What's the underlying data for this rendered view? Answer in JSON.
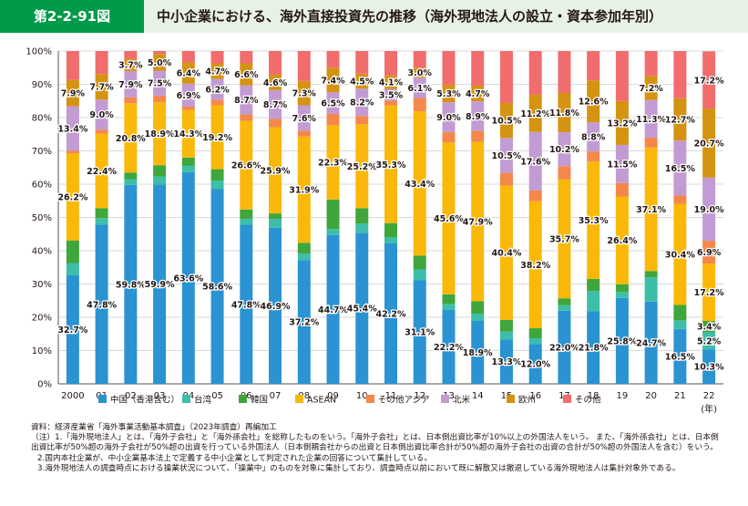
{
  "figure_number": "第2-2-91図",
  "figure_title": "中小企業における、海外直接投資先の推移（海外現地法人の設立・資本参加年別）",
  "chart_data": {
    "type": "bar",
    "stacked": true,
    "percent": true,
    "categories": [
      "2000",
      "01",
      "02",
      "03",
      "04",
      "05",
      "06",
      "07",
      "08",
      "09",
      "10",
      "11",
      "12",
      "13",
      "14",
      "15",
      "16",
      "17",
      "18",
      "19",
      "20",
      "21",
      "22"
    ],
    "x_unit": "(年)",
    "ylim": [
      0,
      100
    ],
    "yticks": [
      "0%",
      "10%",
      "20%",
      "30%",
      "40%",
      "50%",
      "60%",
      "70%",
      "80%",
      "90%",
      "100%"
    ],
    "legend_position": "bottom",
    "series": [
      {
        "name": "中国（香港含む）",
        "color": "#2b93d1",
        "values": [
          32.7,
          47.8,
          59.8,
          59.9,
          63.6,
          58.6,
          47.8,
          46.9,
          37.2,
          44.7,
          45.4,
          42.2,
          31.1,
          22.2,
          18.9,
          13.3,
          12.0,
          22.0,
          21.8,
          25.8,
          24.7,
          16.5,
          10.3
        ],
        "labels": [
          "32.7%",
          "47.8%",
          "59.8%",
          "59.9%",
          "63.6%",
          "58.6%",
          "47.8%",
          "46.9%",
          "37.2%",
          "44.7%",
          "45.4%",
          "42.2%",
          "31.1%",
          "22.2%",
          "18.9%",
          "13.3%",
          "12.0%",
          "22.0%",
          "21.8%",
          "25.8%",
          "24.7%",
          "16.5%",
          "10.3%"
        ]
      },
      {
        "name": "台湾",
        "color": "#3cbea9",
        "values": [
          3.6,
          2.0,
          1.7,
          2.4,
          1.9,
          2.5,
          1.8,
          2.6,
          1.9,
          1.8,
          2.8,
          1.8,
          3.3,
          1.8,
          2.2,
          2.4,
          1.7,
          1.6,
          6.1,
          1.8,
          7.3,
          2.6,
          5.2
        ],
        "labels": [
          "",
          "",
          "",
          "",
          "",
          "",
          "",
          "",
          "",
          "",
          "",
          "",
          "",
          "",
          "",
          "",
          "",
          "",
          "",
          "",
          "",
          "",
          "5.2%"
        ]
      },
      {
        "name": "韓国",
        "color": "#3fa63b",
        "values": [
          6.8,
          3.0,
          2.0,
          3.4,
          2.5,
          3.4,
          2.8,
          1.7,
          3.3,
          8.9,
          4.6,
          4.3,
          4.1,
          2.9,
          3.7,
          3.5,
          3.0,
          2.1,
          3.6,
          2.3,
          1.9,
          4.6,
          3.4
        ],
        "labels": [
          "",
          "",
          "",
          "",
          "",
          "",
          "",
          "",
          "",
          "",
          "",
          "",
          "",
          "",
          "",
          "",
          "",
          "",
          "",
          "",
          "",
          "",
          "3.4%"
        ]
      },
      {
        "name": "ASEAN",
        "color": "#fab80a",
        "values": [
          26.2,
          22.4,
          20.8,
          18.9,
          14.3,
          19.2,
          26.6,
          25.9,
          31.9,
          22.3,
          25.2,
          35.3,
          43.4,
          45.6,
          47.9,
          40.4,
          38.2,
          35.7,
          35.3,
          26.4,
          37.1,
          30.4,
          17.2
        ],
        "labels": [
          "26.2%",
          "22.4%",
          "20.8%",
          "18.9%",
          "14.3%",
          "19.2%",
          "26.6%",
          "25.9%",
          "31.9%",
          "22.3%",
          "25.2%",
          "35.3%",
          "43.4%",
          "45.6%",
          "47.9%",
          "40.4%",
          "38.2%",
          "35.7%",
          "35.3%",
          "26.4%",
          "37.1%",
          "30.4%",
          "17.2%"
        ]
      },
      {
        "name": "その他アジア",
        "color": "#f4884b",
        "values": [
          0.7,
          1.2,
          1.8,
          2.0,
          1.0,
          1.7,
          2.0,
          2.5,
          1.8,
          3.4,
          2.5,
          1.5,
          4.0,
          3.1,
          3.3,
          3.8,
          3.2,
          4.0,
          3.0,
          4.0,
          3.0,
          2.5,
          6.9
        ],
        "labels": [
          "",
          "",
          "",
          "",
          "",
          "",
          "",
          "",
          "",
          "",
          "",
          "",
          "",
          "",
          "",
          "",
          "",
          "",
          "",
          "",
          "",
          "",
          "6.9%"
        ]
      },
      {
        "name": "北米",
        "color": "#c39bd3",
        "values": [
          13.4,
          9.0,
          7.9,
          7.5,
          6.9,
          6.2,
          8.7,
          8.7,
          7.6,
          6.5,
          8.2,
          3.5,
          6.1,
          9.0,
          8.9,
          10.5,
          17.6,
          10.2,
          8.8,
          11.5,
          11.3,
          16.5,
          19.0
        ],
        "labels": [
          "13.4%",
          "9.0%",
          "7.9%",
          "7.5%",
          "6.9%",
          "6.2%",
          "8.7%",
          "8.7%",
          "7.6%",
          "6.5%",
          "8.2%",
          "3.5%",
          "6.1%",
          "9.0%",
          "8.9%",
          "10.5%",
          "17.6%",
          "10.2%",
          "8.8%",
          "11.5%",
          "11.3%",
          "16.5%",
          "19.0%"
        ]
      },
      {
        "name": "欧州",
        "color": "#d49311",
        "values": [
          7.9,
          7.7,
          3.7,
          5.0,
          6.4,
          4.7,
          6.6,
          4.6,
          7.3,
          7.4,
          4.5,
          4.1,
          3.0,
          5.3,
          4.7,
          10.5,
          11.2,
          11.8,
          12.6,
          13.2,
          7.2,
          12.7,
          20.7
        ],
        "labels": [
          "7.9%",
          "7.7%",
          "3.7%",
          "5.0%",
          "6.4%",
          "4.7%",
          "6.6%",
          "4.6%",
          "7.3%",
          "7.4%",
          "4.5%",
          "4.1%",
          "3.0%",
          "5.3%",
          "4.7%",
          "10.5%",
          "11.2%",
          "11.8%",
          "12.6%",
          "13.2%",
          "7.2%",
          "12.7%",
          "20.7%"
        ]
      },
      {
        "name": "その他",
        "color": "#f16c6c",
        "values": [
          8.7,
          6.9,
          2.3,
          0.9,
          3.4,
          3.7,
          3.7,
          7.1,
          9.0,
          5.0,
          6.8,
          7.3,
          5.0,
          10.1,
          10.4,
          15.6,
          13.1,
          12.6,
          8.8,
          15.0,
          7.5,
          14.2,
          17.2
        ],
        "labels": [
          "",
          "",
          "",
          "",
          "",
          "",
          "",
          "",
          "",
          "",
          "",
          "",
          "",
          "",
          "",
          "",
          "",
          "",
          "",
          "",
          "",
          "",
          "17.2%"
        ]
      }
    ]
  },
  "notes": [
    "資料：経済産業省「海外事業活動基本調査」（2023年調査）再編加工",
    "（注）1.「海外現地法人」とは、「海外子会社」と「海外孫会社」を総称したものをいう。「海外子会社」とは、日本側出資比率が10%以上の外国法人をいう。 また、「海外孫会社」とは、日本側出資比率が50%超の海外子会社が50%超の出資を行っている外国法人（日本側親会社からの出資と日本側出資比率合計が50%超の海外子会社の出資の合計が50%超の外国法人を含む）をいう。",
    "2.国内本社企業が、中小企業基本法上で定義する中小企業として判定された企業の回答について集計している。",
    "3.海外現地法人の調査時点における操業状況について、「操業中」のものを対象に集計しており、調査時点以前において既に解散又は撤退している海外現地法人は集計対象外である。"
  ]
}
